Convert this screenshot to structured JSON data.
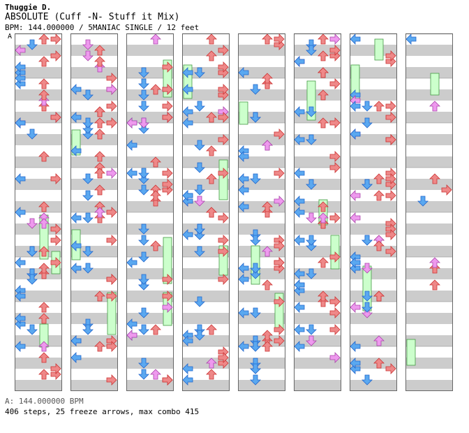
{
  "header": {
    "artist": "Thuggie D.",
    "title": "ABSOLUTE (Cuff -N- Stuff it Mix)",
    "info": "BPM: 144.000000 / 5MANIAC SINGLE / 12 feet",
    "bpm_marker": "A"
  },
  "footer": {
    "bpm_line": "A: 144.000000 BPM",
    "stats": "406 steps, 25 freeze arrows, max combo 415"
  },
  "colors": {
    "stripe": "#cccccc",
    "left_arrow": "#5aa8f0",
    "down_arrow": "#5aa8f0",
    "up_arrow": "#ee8888",
    "right_arrow": "#ee8888",
    "offbeat_arrow": "#ee99ee",
    "freeze": "#ccffcc",
    "freeze_head": "#44dd44"
  },
  "chart_data": {
    "type": "step-chart",
    "columns": 8,
    "measures_per_column": 8,
    "lanes": [
      "left",
      "down",
      "up",
      "right"
    ],
    "bpm": 144,
    "difficulty": "5MANIAC SINGLE",
    "feet": 12,
    "steps": 406,
    "freeze_arrows": 25,
    "max_combo": 415
  }
}
